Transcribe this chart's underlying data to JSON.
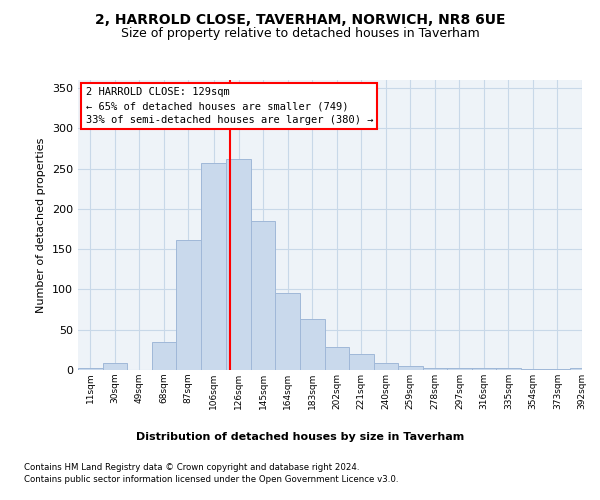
{
  "title1": "2, HARROLD CLOSE, TAVERHAM, NORWICH, NR8 6UE",
  "title2": "Size of property relative to detached houses in Taverham",
  "xlabel": "Distribution of detached houses by size in Taverham",
  "ylabel": "Number of detached properties",
  "bar_color": "#c9d9ec",
  "bar_edge_color": "#a0b8d8",
  "grid_color": "#c8d8e8",
  "plot_bg_color": "#eef3f8",
  "bins": [
    "11sqm",
    "30sqm",
    "49sqm",
    "68sqm",
    "87sqm",
    "106sqm",
    "126sqm",
    "145sqm",
    "164sqm",
    "183sqm",
    "202sqm",
    "221sqm",
    "240sqm",
    "259sqm",
    "278sqm",
    "297sqm",
    "316sqm",
    "335sqm",
    "354sqm",
    "373sqm",
    "392sqm"
  ],
  "bar_heights": [
    2,
    9,
    0,
    35,
    162,
    257,
    262,
    185,
    96,
    63,
    28,
    20,
    9,
    5,
    3,
    2,
    2,
    2,
    1,
    1,
    2
  ],
  "bin_edges": [
    11,
    30,
    49,
    68,
    87,
    106,
    126,
    145,
    164,
    183,
    202,
    221,
    240,
    259,
    278,
    297,
    316,
    335,
    354,
    373,
    392
  ],
  "property_line_x": 129,
  "annotation_text": "2 HARROLD CLOSE: 129sqm\n← 65% of detached houses are smaller (749)\n33% of semi-detached houses are larger (380) →",
  "footer1": "Contains HM Land Registry data © Crown copyright and database right 2024.",
  "footer2": "Contains public sector information licensed under the Open Government Licence v3.0.",
  "ylim": [
    0,
    360
  ],
  "yticks": [
    0,
    50,
    100,
    150,
    200,
    250,
    300,
    350
  ]
}
